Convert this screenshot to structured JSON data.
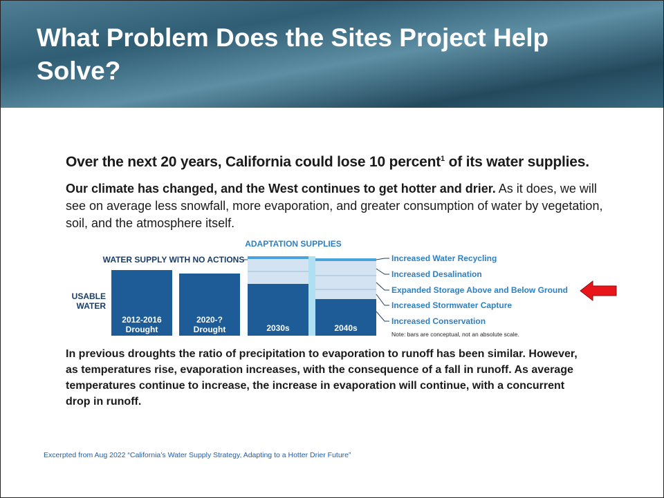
{
  "header": {
    "title": "What Problem Does the Sites Project Help Solve?"
  },
  "headline": {
    "before": "Over the next 20 years, California could lose 10 percent",
    "footnote": "1",
    "after": " of its water supplies."
  },
  "intro": {
    "bold": "Our climate has changed, and the West continues to get hotter and drier.",
    "rest": " As it does, we will see on average less snowfall, more evaporation, and greater consumption of water by vegetation, soil, and the atmosphere itself."
  },
  "diagram": {
    "adaptation_title": "ADAPTATION SUPPLIES",
    "no_action_title": "WATER SUPPLY WITH NO ACTIONS",
    "usable_line1": "USABLE",
    "usable_line2": "WATER",
    "bars": [
      {
        "line1": "2012-2016",
        "line2": "Drought"
      },
      {
        "line1": "2020-?",
        "line2": "Drought"
      },
      {
        "line1": "2030s"
      },
      {
        "line1": "2040s"
      }
    ],
    "legend": [
      "Increased Water Recycling",
      "Increased Desalination",
      "Expanded Storage Above and Below Ground",
      "Increased Stormwater Capture",
      "Increased Conservation"
    ],
    "note": "Note: bars are conceptual, not an absolute scale."
  },
  "body": "In previous droughts the ratio of precipitation to evaporation to runoff has been similar. However, as temperatures rise, evaporation increases, with the consequence of a fall in runoff. As average temperatures continue to increase, the increase in evaporation will continue, with a concurrent drop in runoff.",
  "source": "Excerpted from Aug 2022 “California’s Water Supply Strategy, Adapting to a Hotter Drier Future”"
}
